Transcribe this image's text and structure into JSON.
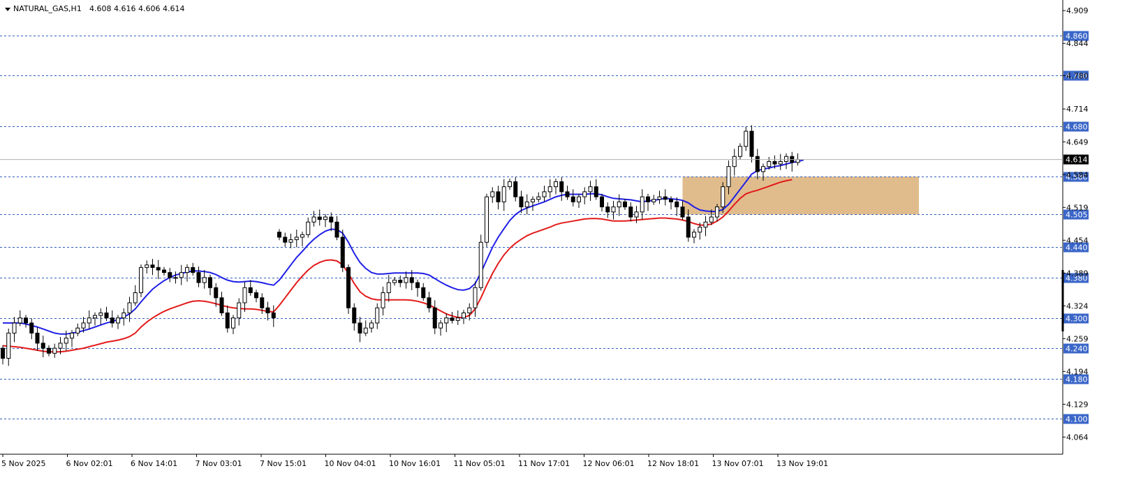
{
  "header": {
    "symbol": "NATURAL_GAS,H1",
    "ohlc": "4.608 4.616 4.606 4.614"
  },
  "colors": {
    "background": "#ffffff",
    "grid_level": "#2f5dbd",
    "label_bg": "#3a66c8",
    "ma_fast": "#1f1fe6",
    "ma_slow": "#e31a1a",
    "zone": "#deb887",
    "bull_candle": "#ffffff",
    "bear_candle": "#000000"
  },
  "chart_data": {
    "type": "candlestick",
    "title": "NATURAL_GAS,H1",
    "ylim": [
      4.03,
      4.93
    ],
    "y_ticks": [
      "4.909",
      "4.844",
      "4.780",
      "4.714",
      "4.649",
      "4.584",
      "4.519",
      "4.454",
      "4.389",
      "4.324",
      "4.259",
      "4.194",
      "4.129",
      "4.064"
    ],
    "x_ticks": [
      "5 Nov 2025",
      "6 Nov 02:01",
      "6 Nov 14:01",
      "7 Nov 03:01",
      "7 Nov 15:01",
      "10 Nov 04:01",
      "10 Nov 16:01",
      "11 Nov 05:01",
      "11 Nov 17:01",
      "12 Nov 06:01",
      "12 Nov 18:01",
      "13 Nov 07:01",
      "13 Nov 19:01"
    ],
    "level_lines": [
      "4.860",
      "4.780",
      "4.680",
      "4.580",
      "4.505",
      "4.440",
      "4.380",
      "4.300",
      "4.240",
      "4.180",
      "4.100"
    ],
    "current_price": "4.614",
    "zone": {
      "from": 4.505,
      "to": 4.58
    },
    "candles": {
      "open": [
        4.24,
        4.22,
        4.27,
        4.29,
        4.3,
        4.29,
        4.27,
        4.25,
        4.24,
        4.23,
        4.24,
        4.25,
        4.26,
        4.27,
        4.28,
        4.29,
        4.3,
        4.305,
        4.31,
        4.3,
        4.29,
        4.3,
        4.31,
        4.33,
        4.35,
        4.4,
        4.405,
        4.4,
        4.395,
        4.39,
        4.38,
        4.38,
        4.39,
        4.4,
        4.39,
        4.37,
        4.38,
        4.36,
        4.34,
        4.31,
        4.28,
        4.3,
        4.33,
        4.36,
        4.35,
        4.34,
        4.32,
        4.31,
        4.47,
        4.46,
        4.45,
        4.455,
        4.46,
        4.465,
        4.49,
        4.5,
        4.495,
        4.5,
        4.49,
        4.46,
        4.4,
        4.32,
        4.29,
        4.27,
        4.28,
        4.29,
        4.32,
        4.35,
        4.37,
        4.375,
        4.37,
        4.38,
        4.37,
        4.36,
        4.34,
        4.32,
        4.28,
        4.29,
        4.3,
        4.295,
        4.3,
        4.31,
        4.32,
        4.36,
        4.45,
        4.54,
        4.55,
        4.53,
        4.56,
        4.57,
        4.54,
        4.52,
        4.53,
        4.535,
        4.54,
        4.55,
        4.56,
        4.57,
        4.55,
        4.54,
        4.53,
        4.54,
        4.55,
        4.56,
        4.54,
        4.52,
        4.51,
        4.52,
        4.53,
        4.52,
        4.5,
        4.51,
        4.54,
        4.53,
        4.535,
        4.54,
        4.535,
        4.53,
        4.52,
        4.5,
        4.46,
        4.47,
        4.48,
        4.49,
        4.5,
        4.52,
        4.56,
        4.6,
        4.62,
        4.64,
        4.67,
        4.62,
        4.59,
        4.6,
        4.61,
        4.605,
        4.61,
        4.62,
        4.608
      ],
      "close": [
        4.22,
        4.27,
        4.29,
        4.3,
        4.29,
        4.27,
        4.25,
        4.24,
        4.23,
        4.24,
        4.25,
        4.26,
        4.27,
        4.28,
        4.29,
        4.3,
        4.305,
        4.31,
        4.3,
        4.29,
        4.3,
        4.31,
        4.33,
        4.35,
        4.4,
        4.405,
        4.4,
        4.395,
        4.39,
        4.38,
        4.38,
        4.39,
        4.4,
        4.39,
        4.37,
        4.38,
        4.36,
        4.34,
        4.31,
        4.28,
        4.3,
        4.33,
        4.36,
        4.35,
        4.34,
        4.32,
        4.31,
        4.3,
        4.46,
        4.45,
        4.455,
        4.46,
        4.465,
        4.49,
        4.5,
        4.495,
        4.5,
        4.49,
        4.46,
        4.4,
        4.32,
        4.29,
        4.27,
        4.28,
        4.29,
        4.32,
        4.35,
        4.37,
        4.375,
        4.37,
        4.38,
        4.37,
        4.36,
        4.34,
        4.32,
        4.28,
        4.29,
        4.3,
        4.295,
        4.3,
        4.31,
        4.32,
        4.36,
        4.45,
        4.54,
        4.55,
        4.53,
        4.56,
        4.57,
        4.54,
        4.52,
        4.53,
        4.535,
        4.54,
        4.55,
        4.56,
        4.57,
        4.55,
        4.54,
        4.53,
        4.54,
        4.55,
        4.56,
        4.54,
        4.52,
        4.51,
        4.52,
        4.53,
        4.52,
        4.5,
        4.51,
        4.54,
        4.53,
        4.535,
        4.54,
        4.535,
        4.53,
        4.52,
        4.5,
        4.46,
        4.47,
        4.48,
        4.49,
        4.5,
        4.52,
        4.56,
        4.6,
        4.62,
        4.64,
        4.67,
        4.62,
        4.59,
        4.6,
        4.61,
        4.605,
        4.61,
        4.62,
        4.608,
        4.614
      ]
    },
    "series": [
      {
        "values": [
          4.29,
          4.29,
          4.29,
          4.29,
          4.288,
          4.285,
          4.282,
          4.278,
          4.274,
          4.27,
          4.268,
          4.268,
          4.27,
          4.272,
          4.275,
          4.278,
          4.282,
          4.286,
          4.29,
          4.293,
          4.297,
          4.302,
          4.308,
          4.318,
          4.332,
          4.345,
          4.357,
          4.366,
          4.374,
          4.38,
          4.385,
          4.388,
          4.391,
          4.393,
          4.393,
          4.392,
          4.39,
          4.386,
          4.38,
          4.375,
          4.372,
          4.371,
          4.372,
          4.373,
          4.372,
          4.37,
          4.367,
          4.365,
          4.375,
          4.39,
          4.405,
          4.42,
          4.432,
          4.445,
          4.456,
          4.465,
          4.472,
          4.476,
          4.475,
          4.468,
          4.45,
          4.428,
          4.41,
          4.398,
          4.39,
          4.387,
          4.387,
          4.388,
          4.389,
          4.389,
          4.389,
          4.389,
          4.389,
          4.388,
          4.385,
          4.378,
          4.371,
          4.365,
          4.36,
          4.356,
          4.355,
          4.358,
          4.368,
          4.39,
          4.415,
          4.44,
          4.46,
          4.477,
          4.493,
          4.505,
          4.513,
          4.518,
          4.522,
          4.526,
          4.53,
          4.535,
          4.54,
          4.543,
          4.545,
          4.545,
          4.545,
          4.545,
          4.546,
          4.546,
          4.544,
          4.54,
          4.537,
          4.536,
          4.535,
          4.534,
          4.532,
          4.53,
          4.532,
          4.533,
          4.535,
          4.537,
          4.536,
          4.535,
          4.533,
          4.528,
          4.52,
          4.514,
          4.512,
          4.511,
          4.511,
          4.515,
          4.525,
          4.54,
          4.555,
          4.57,
          4.585,
          4.592,
          4.595,
          4.597,
          4.6,
          4.602,
          4.605,
          4.608,
          4.61,
          4.613
        ]
      },
      {
        "values": [
          4.245,
          4.244,
          4.243,
          4.242,
          4.24,
          4.238,
          4.236,
          4.234,
          4.233,
          4.233,
          4.233,
          4.234,
          4.236,
          4.238,
          4.24,
          4.243,
          4.246,
          4.249,
          4.252,
          4.254,
          4.256,
          4.259,
          4.263,
          4.27,
          4.282,
          4.292,
          4.3,
          4.307,
          4.313,
          4.318,
          4.322,
          4.326,
          4.33,
          4.333,
          4.334,
          4.333,
          4.331,
          4.328,
          4.325,
          4.322,
          4.32,
          4.319,
          4.318,
          4.318,
          4.317,
          4.315,
          4.313,
          4.312,
          4.325,
          4.34,
          4.355,
          4.37,
          4.383,
          4.395,
          4.404,
          4.41,
          4.414,
          4.415,
          4.413,
          4.405,
          4.388,
          4.368,
          4.352,
          4.343,
          4.338,
          4.336,
          4.336,
          4.336,
          4.336,
          4.336,
          4.336,
          4.335,
          4.333,
          4.33,
          4.326,
          4.32,
          4.314,
          4.308,
          4.304,
          4.301,
          4.301,
          4.305,
          4.318,
          4.34,
          4.365,
          4.388,
          4.408,
          4.425,
          4.438,
          4.448,
          4.456,
          4.463,
          4.468,
          4.472,
          4.476,
          4.48,
          4.485,
          4.488,
          4.49,
          4.492,
          4.494,
          4.496,
          4.497,
          4.497,
          4.496,
          4.494,
          4.492,
          4.492,
          4.492,
          4.493,
          4.494,
          4.495,
          4.496,
          4.497,
          4.498,
          4.498,
          4.497,
          4.496,
          4.494,
          4.491,
          4.487,
          4.484,
          4.484,
          4.486,
          4.492,
          4.5,
          4.512,
          4.525,
          4.537,
          4.546,
          4.55,
          4.553,
          4.557,
          4.561,
          4.565,
          4.569,
          4.572,
          4.574
        ]
      }
    ]
  }
}
